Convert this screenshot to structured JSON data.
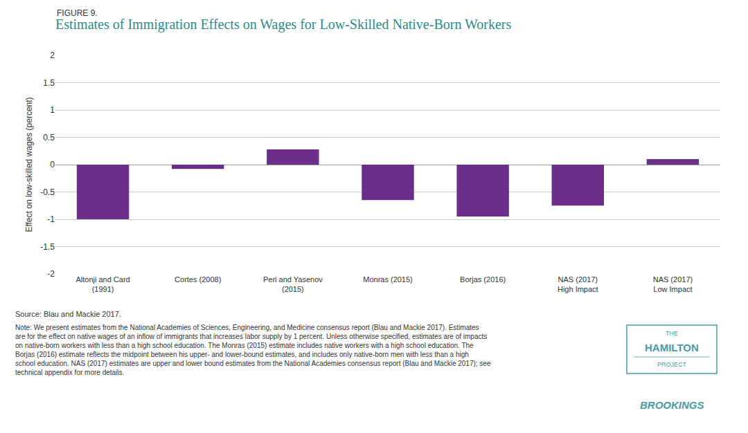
{
  "chart_data": {
    "type": "bar",
    "title": "Estimates of Immigration Effects on Wages for Low-Skilled Native-Born Workers",
    "ylabel": "Effect on low-skilled wages (percent)",
    "categories": [
      "Altonji and Card\n(1991)",
      "Cortes (2008)",
      "Peri and Yasenov\n(2015)",
      "Monras (2015)",
      "Borjas (2016)",
      "NAS (2017)\nHigh Impact",
      "NAS (2017)\nLow Impact"
    ],
    "values": [
      -1.0,
      -0.08,
      0.28,
      -0.65,
      -0.95,
      -0.75,
      0.1
    ],
    "color": "#6B2F8A",
    "ylim": [
      -2,
      2
    ],
    "yticks": [
      -2,
      -1.5,
      -1,
      -0.5,
      0,
      0.5,
      1,
      1.5,
      2
    ],
    "grid": true,
    "annotations": [
      "FIGURE 9.",
      "Source: Blau and Mackie 2017.",
      "Note: We present estimates from the National Academies of Sciences, Engineering, and Medicine consensus report (Blau and Mackie 2017). Estimates\nare for the effect on native wages of an inflow of immigrants that increases labor supply by 1 percent. Unless otherwise specified, estimates are of impacts\non native-born workers with less than a high school education. The Monras (2015) estimate includes native workers with a high school education. The\nBorjas (2016) estimate reflects the midpoint between his upper- and lower-bound estimates, and includes only native-born men with less than a high\nschool education. NAS (2017) estimates are upper and lower bound estimates from the National Academies consensus report (Blau and Mackie 2017); see\ntechnical appendix for more details.",
      "THE",
      "HAMILTON",
      "PROJECT",
      "BROOKINGS"
    ]
  }
}
